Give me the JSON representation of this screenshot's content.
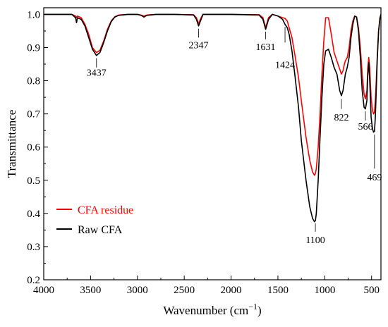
{
  "chart_data": {
    "type": "line",
    "xlabel": "Wavenumber (cm",
    "xlabel_sup": "−1",
    "xlabel_close": ")",
    "ylabel": "Transmittance",
    "xlim": [
      4000,
      400
    ],
    "ylim": [
      0.2,
      1.02
    ],
    "x_ticks": [
      4000,
      3500,
      3000,
      2500,
      2000,
      1500,
      1000,
      500
    ],
    "x_tick_labels": [
      "4000",
      "3500",
      "3000",
      "2500",
      "2000",
      "1500",
      "1000",
      "500"
    ],
    "y_ticks": [
      0.2,
      0.3,
      0.4,
      0.5,
      0.6,
      0.7,
      0.8,
      0.9,
      1.0
    ],
    "y_tick_labels": [
      "0.2",
      "0.3",
      "0.4",
      "0.5",
      "0.6",
      "0.7",
      "0.8",
      "0.9",
      "1.0"
    ],
    "legend_placement": "lower-left",
    "series": [
      {
        "name": "CFA residue",
        "color": "#ff0000",
        "x": [
          4000,
          3700,
          3660,
          3650,
          3640,
          3600,
          3560,
          3520,
          3480,
          3437,
          3400,
          3360,
          3320,
          3280,
          3240,
          3200,
          3100,
          3000,
          2960,
          2930,
          2900,
          2800,
          2600,
          2400,
          2370,
          2347,
          2320,
          2300,
          2000,
          1700,
          1660,
          1631,
          1600,
          1560,
          1500,
          1450,
          1424,
          1400,
          1380,
          1350,
          1320,
          1280,
          1250,
          1200,
          1160,
          1130,
          1110,
          1100,
          1090,
          1070,
          1050,
          1030,
          1010,
          990,
          960,
          930,
          900,
          870,
          840,
          822,
          805,
          790,
          780,
          760,
          740,
          720,
          700,
          680,
          660,
          640,
          620,
          600,
          580,
          566,
          550,
          540,
          530,
          520,
          505,
          490,
          479,
          469,
          460,
          450,
          440,
          425,
          410,
          400
        ],
        "y": [
          1.0,
          1.0,
          0.995,
          0.99,
          0.995,
          0.99,
          0.97,
          0.94,
          0.9,
          0.885,
          0.892,
          0.92,
          0.955,
          0.98,
          0.993,
          0.998,
          1.0,
          1.0,
          0.998,
          0.995,
          0.998,
          1.0,
          1.0,
          0.999,
          0.99,
          0.972,
          0.99,
          1.0,
          1.0,
          0.999,
          0.99,
          0.96,
          0.99,
          1.0,
          0.995,
          0.99,
          0.988,
          0.98,
          0.96,
          0.93,
          0.88,
          0.81,
          0.74,
          0.63,
          0.56,
          0.525,
          0.515,
          0.52,
          0.535,
          0.6,
          0.7,
          0.82,
          0.92,
          0.99,
          0.99,
          0.94,
          0.885,
          0.86,
          0.835,
          0.82,
          0.83,
          0.85,
          0.86,
          0.87,
          0.9,
          0.95,
          0.98,
          0.995,
          0.992,
          0.96,
          0.9,
          0.82,
          0.76,
          0.745,
          0.77,
          0.84,
          0.87,
          0.84,
          0.75,
          0.71,
          0.7,
          0.705,
          0.74,
          0.8,
          0.87,
          0.95,
          0.99,
          1.0
        ]
      },
      {
        "name": "Raw CFA",
        "color": "#000000",
        "x": [
          4000,
          3700,
          3660,
          3650,
          3640,
          3600,
          3560,
          3520,
          3480,
          3437,
          3400,
          3360,
          3320,
          3280,
          3240,
          3200,
          3100,
          3000,
          2960,
          2930,
          2900,
          2800,
          2600,
          2400,
          2370,
          2347,
          2320,
          2300,
          2000,
          1700,
          1660,
          1631,
          1600,
          1560,
          1500,
          1450,
          1424,
          1400,
          1380,
          1350,
          1320,
          1280,
          1250,
          1200,
          1160,
          1130,
          1110,
          1100,
          1090,
          1070,
          1050,
          1030,
          1010,
          990,
          960,
          930,
          900,
          870,
          840,
          822,
          805,
          790,
          780,
          760,
          740,
          720,
          700,
          680,
          660,
          640,
          620,
          600,
          580,
          566,
          550,
          540,
          530,
          520,
          505,
          490,
          479,
          469,
          460,
          450,
          440,
          425,
          410,
          400
        ],
        "y": [
          1.0,
          1.0,
          0.99,
          0.975,
          0.99,
          0.985,
          0.965,
          0.93,
          0.895,
          0.876,
          0.885,
          0.915,
          0.95,
          0.978,
          0.992,
          0.997,
          1.0,
          1.0,
          0.997,
          0.992,
          0.997,
          1.0,
          1.0,
          0.998,
          0.985,
          0.965,
          0.985,
          1.0,
          1.0,
          0.998,
          0.985,
          0.955,
          0.985,
          1.0,
          0.995,
          0.985,
          0.97,
          0.96,
          0.94,
          0.89,
          0.82,
          0.72,
          0.62,
          0.5,
          0.42,
          0.385,
          0.375,
          0.378,
          0.4,
          0.5,
          0.63,
          0.75,
          0.85,
          0.89,
          0.895,
          0.87,
          0.84,
          0.82,
          0.77,
          0.755,
          0.77,
          0.8,
          0.82,
          0.84,
          0.87,
          0.93,
          0.97,
          0.995,
          0.992,
          0.95,
          0.87,
          0.77,
          0.72,
          0.715,
          0.74,
          0.82,
          0.855,
          0.8,
          0.69,
          0.655,
          0.645,
          0.648,
          0.69,
          0.77,
          0.86,
          0.95,
          0.99,
          1.0
        ]
      }
    ],
    "annotations": [
      {
        "text": "3437",
        "x": 3437
      },
      {
        "text": "2347",
        "x": 2347
      },
      {
        "text": "1631",
        "x": 1631
      },
      {
        "text": "1424",
        "x": 1424
      },
      {
        "text": "1100",
        "x": 1100
      },
      {
        "text": "822",
        "x": 822
      },
      {
        "text": "566",
        "x": 566
      },
      {
        "text": "469",
        "x": 469
      }
    ]
  }
}
